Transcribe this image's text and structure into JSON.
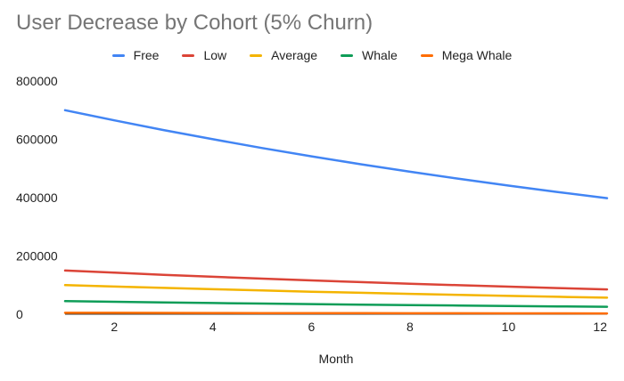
{
  "chart_data": {
    "type": "line",
    "title": "User Decrease by Cohort (5% Churn)",
    "xlabel": "Month",
    "ylabel": "",
    "xlim": [
      1,
      12
    ],
    "ylim": [
      0,
      800000
    ],
    "x_ticks": [
      2,
      4,
      6,
      8,
      10,
      12
    ],
    "y_ticks": [
      0,
      200000,
      400000,
      600000,
      800000
    ],
    "grid": false,
    "legend_position": "top",
    "x": [
      1,
      2,
      3,
      4,
      5,
      6,
      7,
      8,
      9,
      10,
      11,
      12
    ],
    "series": [
      {
        "name": "Free",
        "color": "#4285F4",
        "values": [
          700000,
          665000,
          631750,
          600163,
          570154,
          541647,
          514564,
          488836,
          464394,
          441175,
          419116,
          398160
        ]
      },
      {
        "name": "Low",
        "color": "#DB4437",
        "values": [
          150000,
          142500,
          135375,
          128606,
          122176,
          116067,
          110264,
          104750,
          99513,
          94537,
          89810,
          85320
        ]
      },
      {
        "name": "Average",
        "color": "#F4B400",
        "values": [
          100000,
          95000,
          90250,
          85738,
          81451,
          77378,
          73509,
          69834,
          66342,
          63025,
          59874,
          56880
        ]
      },
      {
        "name": "Whale",
        "color": "#0F9D58",
        "values": [
          45000,
          42750,
          40613,
          38582,
          36653,
          34820,
          33079,
          31425,
          29854,
          28361,
          26943,
          25596
        ]
      },
      {
        "name": "Mega Whale",
        "color": "#FF6D01",
        "values": [
          5000,
          4750,
          4513,
          4287,
          4073,
          3869,
          3675,
          3492,
          3317,
          3151,
          2994,
          2844
        ]
      }
    ]
  }
}
